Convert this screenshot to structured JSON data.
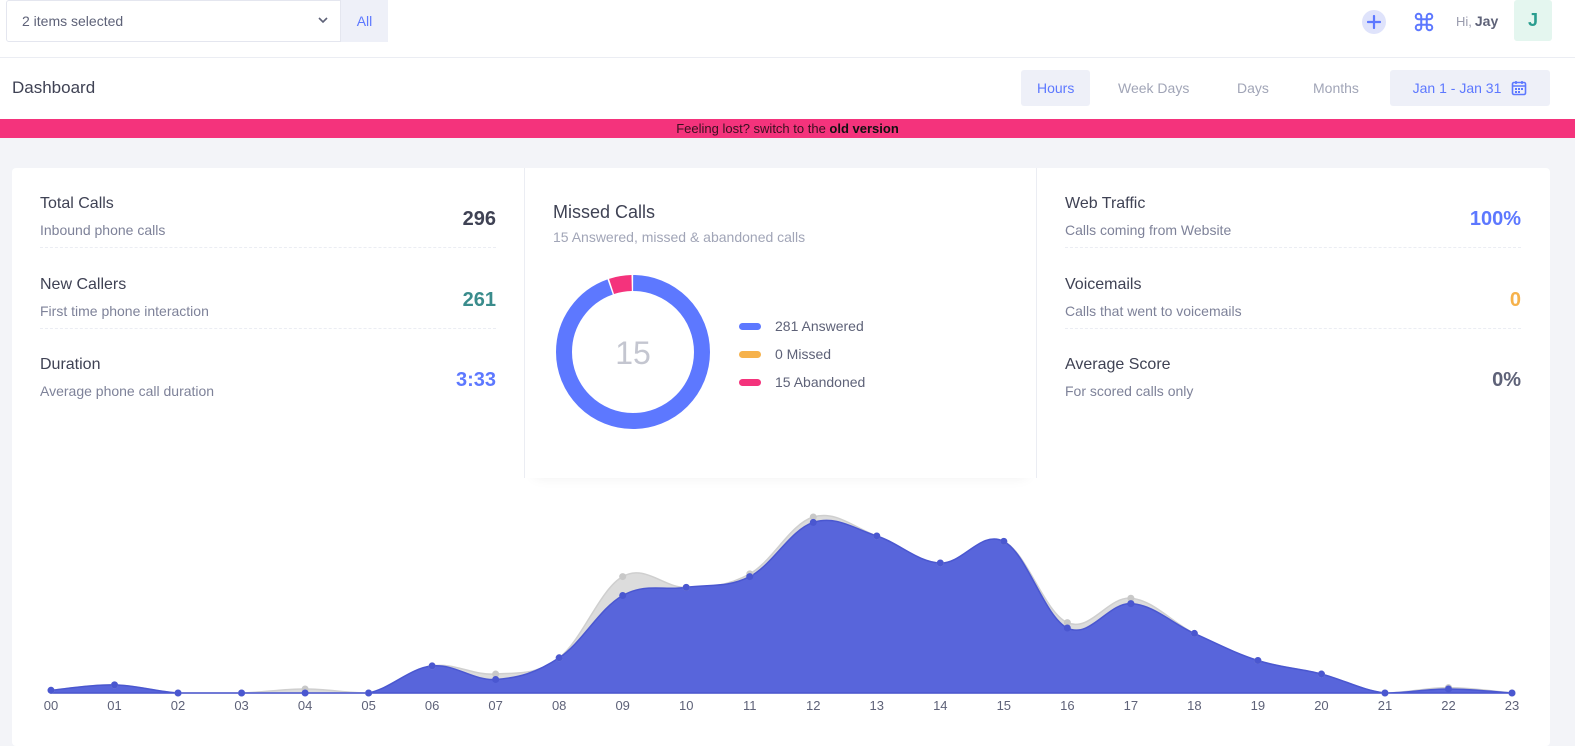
{
  "topbar": {
    "select_value": "2 items selected",
    "all_label": "All",
    "greeting": "Hi,",
    "user_name": "Jay",
    "avatar_letter": "J"
  },
  "subheader": {
    "title": "Dashboard",
    "tabs": [
      "Hours",
      "Week Days",
      "Days",
      "Months"
    ],
    "active_tab": "Hours",
    "date_range": "Jan 1 - Jan 31"
  },
  "banner": {
    "text": "Feeling lost? switch to the",
    "link": "old version"
  },
  "stats_left": [
    {
      "title": "Total Calls",
      "sub": "Inbound phone calls",
      "value": "296",
      "color": "#3f4254"
    },
    {
      "title": "New Callers",
      "sub": "First time phone interaction",
      "value": "261",
      "color": "#3a8c8c"
    },
    {
      "title": "Duration",
      "sub": "Average phone call duration",
      "value": "3:33",
      "color": "#5d78ff"
    }
  ],
  "missed": {
    "title": "Missed Calls",
    "subtitle": "15 Answered, missed & abandoned calls",
    "center": "15",
    "legend": [
      {
        "label": "281 Answered",
        "value": 281,
        "color": "#5d78ff"
      },
      {
        "label": "0 Missed",
        "value": 0,
        "color": "#f6b24b"
      },
      {
        "label": "15 Abandoned",
        "value": 15,
        "color": "#f4337c"
      }
    ]
  },
  "stats_right": [
    {
      "title": "Web Traffic",
      "sub": "Calls coming from Website",
      "value": "100%",
      "color": "#5d78ff"
    },
    {
      "title": "Voicemails",
      "sub": "Calls that went to voicemails",
      "value": "0",
      "color": "#f6b24b"
    },
    {
      "title": "Average Score",
      "sub": "For scored calls only",
      "value": "0%",
      "color": "#5e6278"
    }
  ],
  "chart_data": {
    "type": "area",
    "categories": [
      "00",
      "01",
      "02",
      "03",
      "04",
      "05",
      "06",
      "07",
      "08",
      "09",
      "10",
      "11",
      "12",
      "13",
      "14",
      "15",
      "16",
      "17",
      "18",
      "19",
      "20",
      "21",
      "22",
      "23"
    ],
    "series": [
      {
        "name": "",
        "color": "#d8d8d8",
        "values": [
          1,
          3,
          0,
          0,
          1.5,
          0,
          10,
          7,
          13,
          43,
          39,
          44,
          65,
          58,
          48,
          56,
          26,
          35,
          22,
          12,
          7,
          0,
          2,
          0
        ]
      },
      {
        "name": "",
        "color": "#5865db",
        "values": [
          1,
          3,
          0,
          0,
          0,
          0,
          10,
          5,
          13,
          36,
          39,
          43,
          63,
          58,
          48,
          56,
          24,
          33,
          22,
          12,
          7,
          0,
          1.5,
          0
        ]
      }
    ],
    "ylim": [
      0,
      65
    ]
  }
}
